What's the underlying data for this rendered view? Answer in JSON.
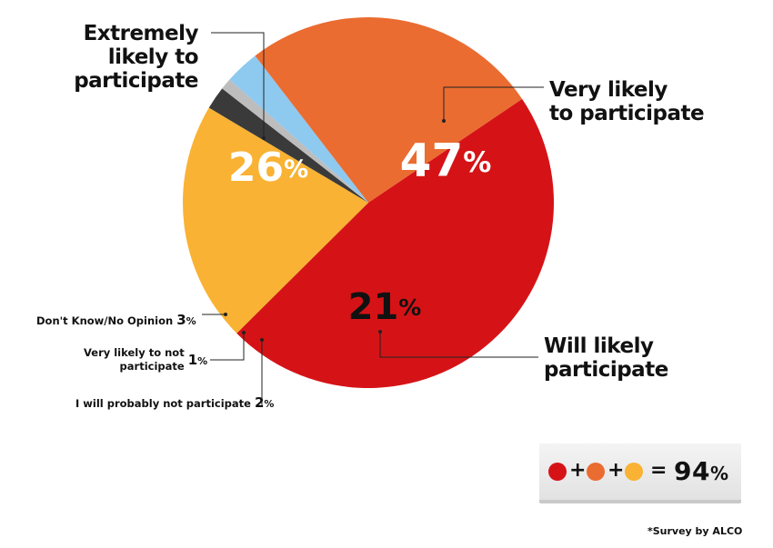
{
  "chart_data": {
    "type": "pie",
    "slices": [
      {
        "label": "Very likely\nto participate",
        "value": 47,
        "display": "47",
        "color": "#d51317"
      },
      {
        "label": "Will likely\nparticipate",
        "value": 21,
        "display": "21",
        "color": "#f9b233"
      },
      {
        "label": "I will probably not participate",
        "value": 2,
        "display": "2",
        "color": "#3a3a3a"
      },
      {
        "label": "Very likely to not\nparticipate",
        "value": 1,
        "display": "1",
        "color": "#bdbdbd"
      },
      {
        "label": "Don't Know/No Opinion",
        "value": 3,
        "display": "3",
        "color": "#8ec9f0"
      },
      {
        "label": "Extremely\nlikely to\nparticipate",
        "value": 26,
        "display": "26",
        "color": "#ea6c31"
      }
    ],
    "percent_sign": "%"
  },
  "summary": {
    "plus": "+",
    "equals": "=",
    "total": "94",
    "percent_sign": "%",
    "colors": [
      "#d51317",
      "#ea6c31",
      "#f9b233"
    ]
  },
  "footnote": "*Survey by ALCO"
}
